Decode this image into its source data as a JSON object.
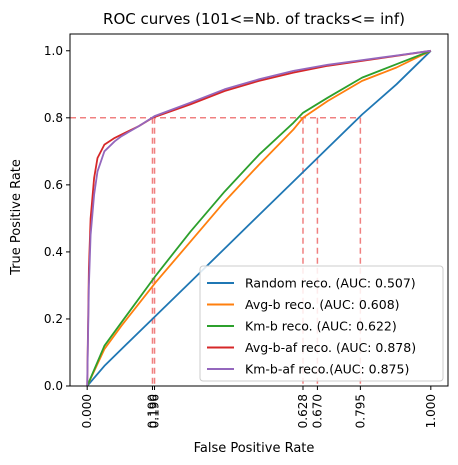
{
  "chart_data": {
    "type": "line",
    "title": "ROC curves (101<=Nb. of tracks<= inf)",
    "xlabel": "False Positive Rate",
    "ylabel": "True Positive Rate",
    "xlim": [
      -0.05,
      1.05
    ],
    "ylim": [
      0.0,
      1.05
    ],
    "grid": false,
    "legend_position": "lower-right",
    "x_ticks": [
      "0.000",
      "0.190",
      "0.196",
      "0.628",
      "0.670",
      "0.795",
      "1.000"
    ],
    "x_tick_values": [
      0.0,
      0.19,
      0.196,
      0.628,
      0.67,
      0.795,
      1.0
    ],
    "y_ticks": [
      "0.0",
      "0.2",
      "0.4",
      "0.6",
      "0.8",
      "1.0"
    ],
    "y_tick_values": [
      0.0,
      0.2,
      0.4,
      0.6,
      0.8,
      1.0
    ],
    "reference_lines": {
      "color": "#f08080",
      "horizontal_y": 0.8,
      "vertical_x": [
        0.19,
        0.196,
        0.628,
        0.67,
        0.795
      ]
    },
    "series": [
      {
        "name": "Random reco. (AUC: 0.507)",
        "color": "#1f77b4",
        "x": [
          0.0,
          0.05,
          0.1,
          0.2,
          0.3,
          0.4,
          0.5,
          0.6,
          0.7,
          0.8,
          0.9,
          1.0
        ],
        "y": [
          0.0,
          0.06,
          0.11,
          0.21,
          0.31,
          0.41,
          0.51,
          0.61,
          0.71,
          0.81,
          0.9,
          1.0
        ]
      },
      {
        "name": "Avg-b reco. (AUC: 0.608)",
        "color": "#ff7f0e",
        "x": [
          0.0,
          0.05,
          0.1,
          0.2,
          0.3,
          0.4,
          0.5,
          0.6,
          0.628,
          0.7,
          0.8,
          0.9,
          1.0
        ],
        "y": [
          0.0,
          0.11,
          0.18,
          0.31,
          0.43,
          0.55,
          0.66,
          0.765,
          0.8,
          0.85,
          0.91,
          0.95,
          1.0
        ]
      },
      {
        "name": "Km-b reco. (AUC: 0.622)",
        "color": "#2ca02c",
        "x": [
          0.0,
          0.05,
          0.1,
          0.2,
          0.3,
          0.4,
          0.5,
          0.6,
          0.628,
          0.7,
          0.8,
          0.9,
          1.0
        ],
        "y": [
          0.0,
          0.12,
          0.19,
          0.33,
          0.46,
          0.58,
          0.69,
          0.785,
          0.815,
          0.86,
          0.92,
          0.96,
          1.0
        ]
      },
      {
        "name": "Avg-b-af reco. (AUC: 0.878)",
        "color": "#d62728",
        "x": [
          0.0,
          0.005,
          0.01,
          0.02,
          0.03,
          0.05,
          0.08,
          0.1,
          0.15,
          0.19,
          0.3,
          0.4,
          0.5,
          0.6,
          0.7,
          0.8,
          0.9,
          1.0
        ],
        "y": [
          0.0,
          0.35,
          0.5,
          0.62,
          0.68,
          0.72,
          0.74,
          0.75,
          0.775,
          0.8,
          0.84,
          0.88,
          0.91,
          0.935,
          0.955,
          0.97,
          0.985,
          1.0
        ]
      },
      {
        "name": "Km-b-af reco.(AUC: 0.875)",
        "color": "#9467bd",
        "x": [
          0.0,
          0.005,
          0.01,
          0.02,
          0.03,
          0.05,
          0.08,
          0.1,
          0.15,
          0.196,
          0.3,
          0.4,
          0.5,
          0.6,
          0.7,
          0.8,
          0.9,
          1.0
        ],
        "y": [
          0.0,
          0.3,
          0.45,
          0.57,
          0.64,
          0.7,
          0.73,
          0.745,
          0.775,
          0.805,
          0.845,
          0.885,
          0.915,
          0.94,
          0.958,
          0.972,
          0.986,
          1.0
        ]
      }
    ]
  }
}
